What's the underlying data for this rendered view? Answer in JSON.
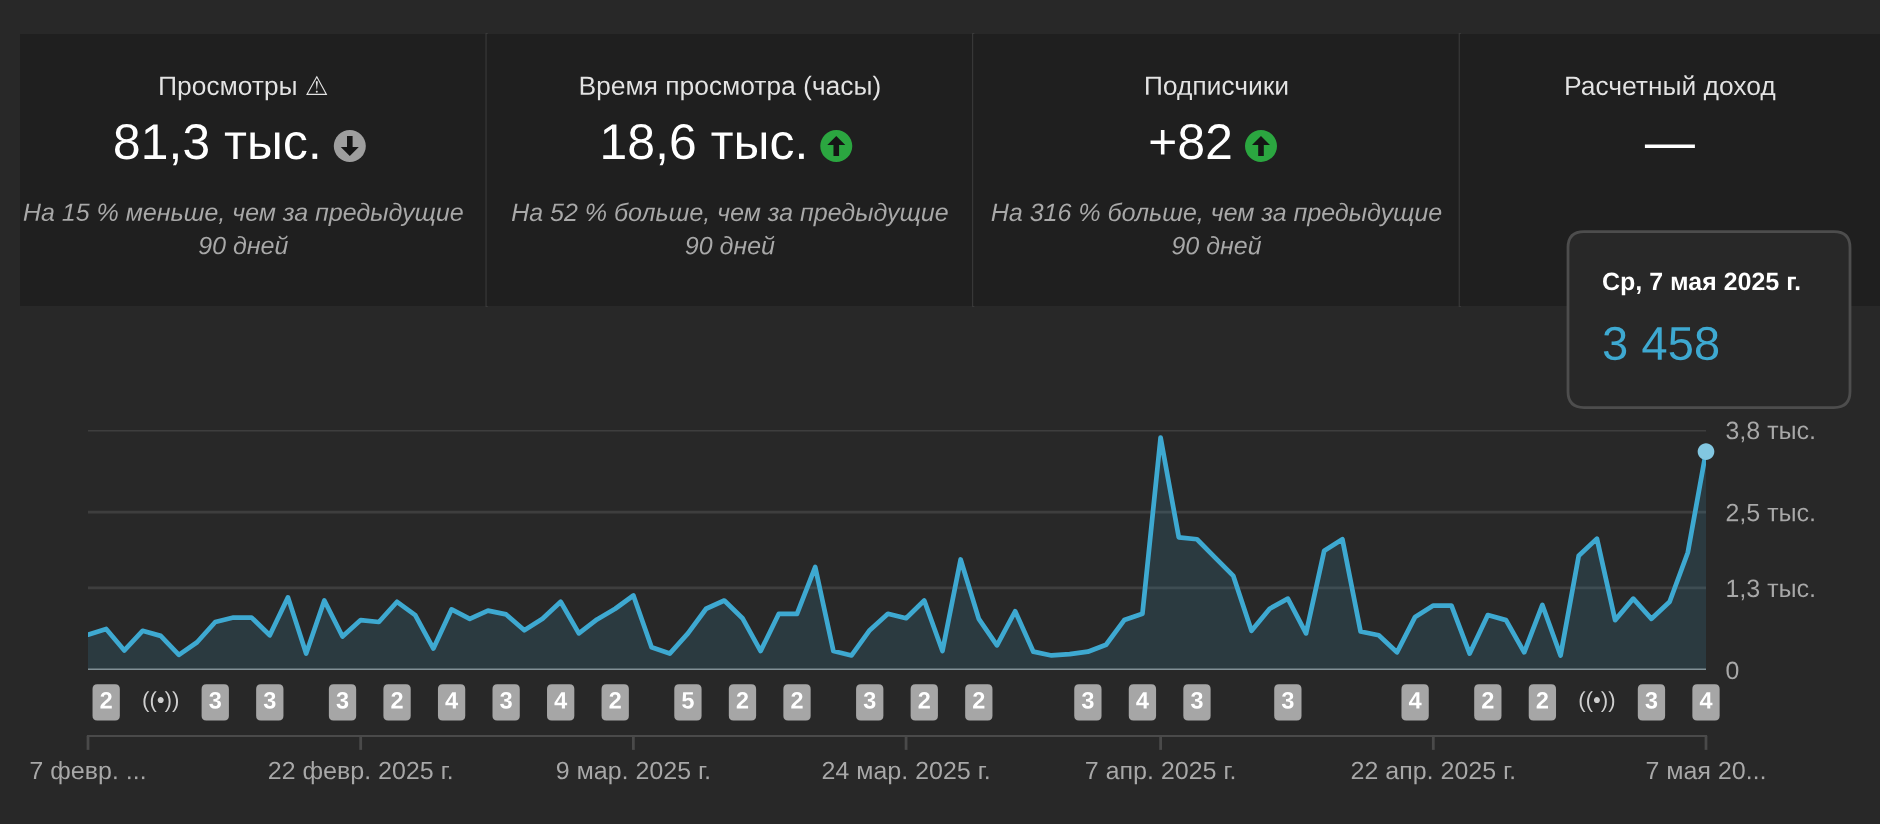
{
  "chart_data": [
    {
      "type": "other",
      "title": "Просмотры ⚠",
      "annotations": [
        "81,3 тыс.",
        "На 15 % меньше, чем за предыдущие\n90 дней"
      ]
    },
    {
      "type": "other",
      "title": "Время просмотра (часы)",
      "annotations": [
        "18,6 тыс.",
        "На 52 % больше, чем за предыдущие\n90 дней"
      ]
    },
    {
      "type": "other",
      "title": "Подписчики",
      "annotations": [
        "+82",
        "На 316 % больше, чем за предыдущие\n90 дней"
      ]
    },
    {
      "type": "other",
      "title": "Расчетный доход",
      "annotations": [
        "—"
      ]
    },
    {
      "type": "area",
      "x": [
        "2025-02-07",
        "2025-02-08",
        "2025-02-09",
        "2025-02-10",
        "2025-02-11",
        "2025-02-12",
        "2025-02-13",
        "2025-02-14",
        "2025-02-15",
        "2025-02-16",
        "2025-02-17",
        "2025-02-18",
        "2025-02-19",
        "2025-02-20",
        "2025-02-21",
        "2025-02-22",
        "2025-02-23",
        "2025-02-24",
        "2025-02-25",
        "2025-02-26",
        "2025-02-27",
        "2025-02-28",
        "2025-03-01",
        "2025-03-02",
        "2025-03-03",
        "2025-03-04",
        "2025-03-05",
        "2025-03-06",
        "2025-03-07",
        "2025-03-08",
        "2025-03-09",
        "2025-03-10",
        "2025-03-11",
        "2025-03-12",
        "2025-03-13",
        "2025-03-14",
        "2025-03-15",
        "2025-03-16",
        "2025-03-17",
        "2025-03-18",
        "2025-03-19",
        "2025-03-20",
        "2025-03-21",
        "2025-03-22",
        "2025-03-23",
        "2025-03-24",
        "2025-03-25",
        "2025-03-26",
        "2025-03-27",
        "2025-03-28",
        "2025-03-29",
        "2025-03-30",
        "2025-03-31",
        "2025-04-01",
        "2025-04-02",
        "2025-04-03",
        "2025-04-04",
        "2025-04-05",
        "2025-04-06",
        "2025-04-07",
        "2025-04-08",
        "2025-04-09",
        "2025-04-10",
        "2025-04-11",
        "2025-04-12",
        "2025-04-13",
        "2025-04-14",
        "2025-04-15",
        "2025-04-16",
        "2025-04-17",
        "2025-04-18",
        "2025-04-19",
        "2025-04-20",
        "2025-04-21",
        "2025-04-22",
        "2025-04-23",
        "2025-04-24",
        "2025-04-25",
        "2025-04-26",
        "2025-04-27",
        "2025-04-28",
        "2025-04-29",
        "2025-04-30",
        "2025-05-01",
        "2025-05-02",
        "2025-05-03",
        "2025-05-04",
        "2025-05-05",
        "2025-05-06",
        "2025-05-07"
      ],
      "series": [
        {
          "color": "#3ea9d1",
          "values": [
            0.56,
            0.65,
            0.31,
            0.62,
            0.54,
            0.24,
            0.44,
            0.76,
            0.83,
            0.83,
            0.55,
            1.15,
            0.26,
            1.1,
            0.53,
            0.79,
            0.76,
            1.08,
            0.87,
            0.34,
            0.96,
            0.81,
            0.94,
            0.88,
            0.63,
            0.81,
            1.08,
            0.58,
            0.8,
            0.97,
            1.18,
            0.36,
            0.26,
            0.58,
            0.97,
            1.1,
            0.82,
            0.3,
            0.89,
            0.89,
            1.63,
            0.3,
            0.23,
            0.63,
            0.89,
            0.82,
            1.1,
            0.3,
            1.75,
            0.81,
            0.39,
            0.93,
            0.29,
            0.23,
            0.25,
            0.29,
            0.4,
            0.79,
            0.89,
            3.68,
            2.1,
            2.07,
            1.78,
            1.49,
            0.62,
            0.97,
            1.13,
            0.58,
            1.89,
            2.07,
            0.61,
            0.55,
            0.28,
            0.84,
            1.02,
            1.02,
            0.26,
            0.87,
            0.79,
            0.28,
            1.03,
            0.23,
            1.81,
            2.08,
            0.79,
            1.13,
            0.81,
            1.08,
            1.86,
            3.458
          ]
        }
      ],
      "xlim": [
        "2025-02-07",
        "2025-05-07"
      ],
      "xticks": [
        {
          "value": "2025-02-07",
          "label": "7 февр. ..."
        },
        {
          "value": "2025-02-22",
          "label": "22 февр. 2025 г."
        },
        {
          "value": "2025-03-09",
          "label": "9 мар. 2025 г."
        },
        {
          "value": "2025-03-24",
          "label": "24 мар. 2025 г."
        },
        {
          "value": "2025-04-07",
          "label": "7 апр. 2025 г."
        },
        {
          "value": "2025-04-22",
          "label": "22 апр. 2025 г."
        },
        {
          "value": "2025-05-07",
          "label": "7 мая 20..."
        }
      ],
      "x2lim": [
        "2025-02-07",
        "2025-05-07"
      ],
      "x2ticks": [
        {
          "value": "2025-02-08",
          "label": "2"
        },
        {
          "value": "2025-02-11",
          "label": "((•))"
        },
        {
          "value": "2025-02-14",
          "label": "3"
        },
        {
          "value": "2025-02-17",
          "label": "3"
        },
        {
          "value": "2025-02-21",
          "label": "3"
        },
        {
          "value": "2025-02-24",
          "label": "2"
        },
        {
          "value": "2025-02-27",
          "label": "4"
        },
        {
          "value": "2025-03-02",
          "label": "3"
        },
        {
          "value": "2025-03-05",
          "label": "4"
        },
        {
          "value": "2025-03-08",
          "label": "2"
        },
        {
          "value": "2025-03-12",
          "label": "5"
        },
        {
          "value": "2025-03-15",
          "label": "2"
        },
        {
          "value": "2025-03-18",
          "label": "2"
        },
        {
          "value": "2025-03-22",
          "label": "3"
        },
        {
          "value": "2025-03-25",
          "label": "2"
        },
        {
          "value": "2025-03-28",
          "label": "2"
        },
        {
          "value": "2025-04-03",
          "label": "3"
        },
        {
          "value": "2025-04-06",
          "label": "4"
        },
        {
          "value": "2025-04-09",
          "label": "3"
        },
        {
          "value": "2025-04-14",
          "label": "3"
        },
        {
          "value": "2025-04-21",
          "label": "4"
        },
        {
          "value": "2025-04-25",
          "label": "2"
        },
        {
          "value": "2025-04-28",
          "label": "2"
        },
        {
          "value": "2025-05-01",
          "label": "((•))"
        },
        {
          "value": "2025-05-04",
          "label": "3"
        },
        {
          "value": "2025-05-07",
          "label": "4"
        }
      ],
      "ylim": [
        0,
        3.8
      ],
      "yticks": [
        0,
        {
          "value": 1.3,
          "label": "1,3 тыс."
        },
        {
          "value": 2.5,
          "label": "2,5 тыс."
        },
        {
          "value": 3.8,
          "label": "3,8 тыс."
        }
      ],
      "grid": "y",
      "annotations": [
        "Ср, 7 мая 2025 г.",
        {
          "text": "3 458",
          "x": "2025-05-07",
          "y": 3.458
        }
      ]
    }
  ]
}
